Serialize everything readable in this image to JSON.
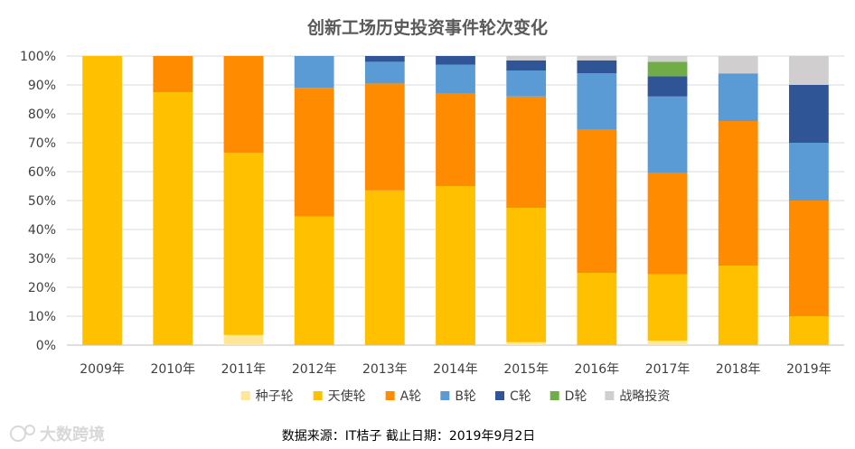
{
  "chart_data": {
    "type": "bar",
    "stacked": true,
    "title": "创新工场历史投资事件轮次变化",
    "categories": [
      "2009年",
      "2010年",
      "2011年",
      "2012年",
      "2013年",
      "2014年",
      "2015年",
      "2016年",
      "2017年",
      "2018年",
      "2019年"
    ],
    "y_ticks": [
      "0%",
      "10%",
      "20%",
      "30%",
      "40%",
      "50%",
      "60%",
      "70%",
      "80%",
      "90%",
      "100%"
    ],
    "ylim": [
      0,
      100
    ],
    "legend_position": "bottom",
    "series": [
      {
        "name": "种子轮",
        "color": "#FFE699",
        "values": [
          0,
          0,
          3.5,
          0,
          0,
          0,
          1,
          0,
          1.5,
          0,
          0
        ]
      },
      {
        "name": "天使轮",
        "color": "#FFC000",
        "values": [
          100,
          87.5,
          63,
          44.5,
          53.5,
          55,
          46.5,
          25,
          23,
          27.5,
          10
        ]
      },
      {
        "name": "A轮",
        "color": "#FF8C00",
        "values": [
          0,
          12.5,
          33.5,
          44.5,
          37,
          32,
          38.5,
          49.5,
          35,
          50,
          40
        ]
      },
      {
        "name": "B轮",
        "color": "#5B9BD5",
        "values": [
          0,
          0,
          0,
          11,
          7.5,
          10,
          9,
          19.5,
          26.5,
          16.5,
          20
        ]
      },
      {
        "name": "C轮",
        "color": "#2F5597",
        "values": [
          0,
          0,
          0,
          0,
          2,
          3,
          3.5,
          4.5,
          7,
          0,
          20
        ]
      },
      {
        "name": "D轮",
        "color": "#70AD47",
        "values": [
          0,
          0,
          0,
          0,
          0,
          0,
          0,
          0,
          5,
          0,
          0
        ]
      },
      {
        "name": "战略投资",
        "color": "#D0CECE",
        "values": [
          0,
          0,
          0,
          0,
          0,
          0,
          1.5,
          1.5,
          2,
          6,
          10
        ]
      }
    ]
  },
  "source_note": "数据来源：IT桔子 截止日期：2019年9月2日",
  "watermark": "大数跨境"
}
